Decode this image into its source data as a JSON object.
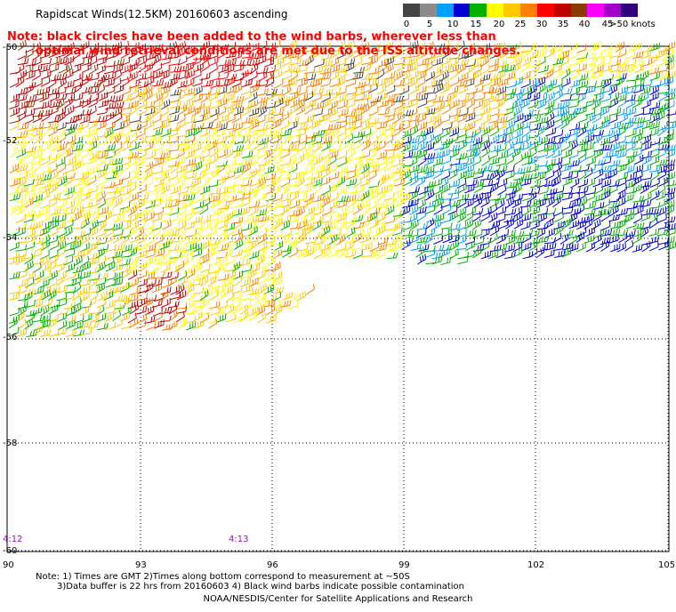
{
  "title": "Rapidscat Winds(12.5KM) 20160603 ascending",
  "note": {
    "line1": "Note: black circles have been added to the wind barbs, wherever less than",
    "line2": "optimal wind retrieval conditions are met due to the ISS altitude changes."
  },
  "colorbar": {
    "colors": [
      "#444444",
      "#8c8c8c",
      "#00a0ff",
      "#0000d0",
      "#00b000",
      "#ffff00",
      "#ffc800",
      "#ff8000",
      "#ff0000",
      "#c00000",
      "#8b3a00",
      "#ff00ff",
      "#a000c8",
      "#300080"
    ],
    "labels": [
      "0",
      "5",
      "10",
      "15",
      "20",
      "25",
      "30",
      "35",
      "40",
      "45",
      ">50 knots"
    ]
  },
  "map": {
    "lat_labels": [
      "-50",
      "-52",
      "-54",
      "-56",
      "-58",
      "-60"
    ],
    "lon_labels": [
      "90",
      "93",
      "96",
      "99",
      "102",
      "105"
    ],
    "time_labels": [
      "4:12",
      "4:13"
    ]
  },
  "footnotes": {
    "line1": "Note: 1) Times are GMT 2)Times along bottom correspond to measurement at ~50S",
    "line2": "3)Data buffer is 22 hrs from 20160603 4) Black wind barbs indicate possible contamination"
  },
  "credit": "NOAA/NESDIS/Center for Satellite Applications and Research"
}
